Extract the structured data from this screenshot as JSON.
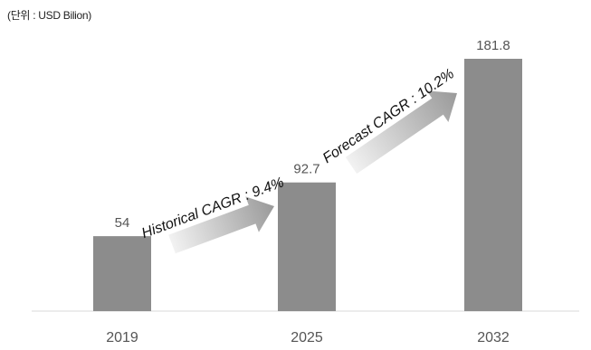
{
  "unit_note": "(단위 : USD Bilion)",
  "chart_data": {
    "type": "bar",
    "categories": [
      "2019",
      "2025",
      "2032"
    ],
    "values": [
      54,
      92.7,
      181.8
    ],
    "value_labels": [
      "54",
      "92.7",
      "181.8"
    ],
    "ylim": [
      0,
      200
    ],
    "grid": false,
    "legend": "none",
    "bar_color": "#8c8c8c",
    "annotations": [
      {
        "text": "Historical CAGR : 9.4%",
        "from": "2019",
        "to": "2025"
      },
      {
        "text": "Forecast CAGR : 10.2%",
        "from": "2025",
        "to": "2032"
      }
    ]
  }
}
